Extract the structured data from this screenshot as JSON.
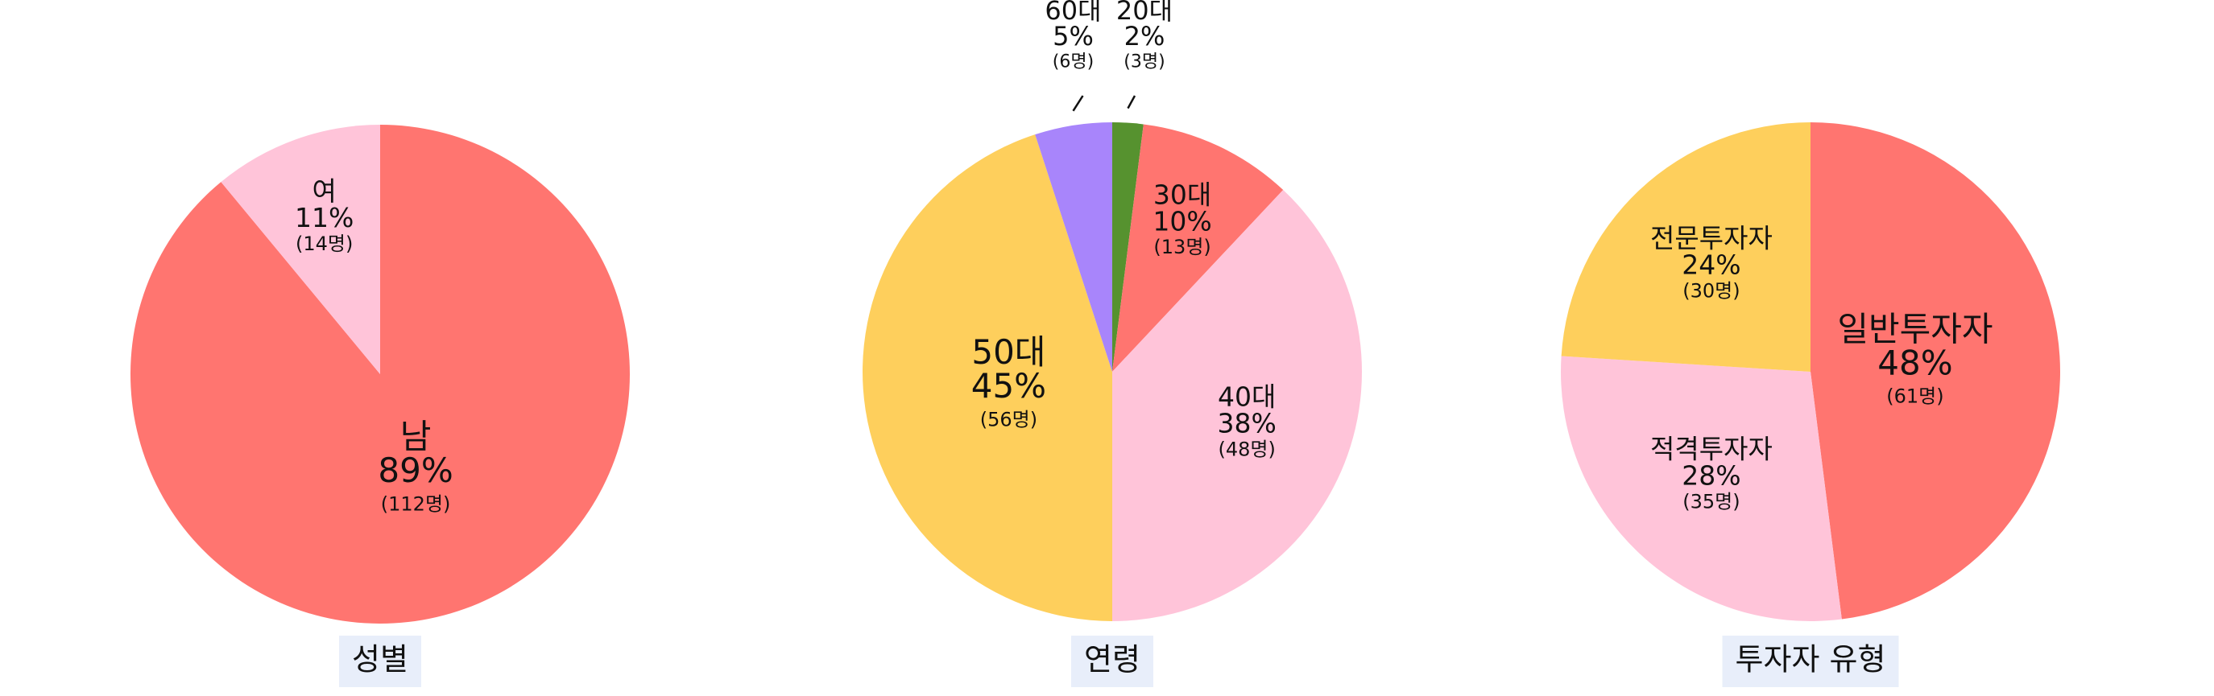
{
  "chart_data": [
    {
      "type": "pie",
      "title": "성별",
      "categories": [
        "남",
        "여"
      ],
      "values": [
        89,
        11
      ],
      "value_labels": [
        "89%",
        "11%"
      ],
      "counts": [
        112,
        14
      ],
      "count_labels": [
        "(112명)",
        "(14명)"
      ],
      "colors": [
        "#ff7570",
        "#ffc4d9"
      ]
    },
    {
      "type": "pie",
      "title": "연령",
      "categories": [
        "20대",
        "30대",
        "40대",
        "50대",
        "60대"
      ],
      "values": [
        2,
        10,
        38,
        45,
        5
      ],
      "value_labels": [
        "2%",
        "10%",
        "38%",
        "45%",
        "5%"
      ],
      "counts": [
        3,
        13,
        48,
        56,
        6
      ],
      "count_labels": [
        "(3명)",
        "(13명)",
        "(48명)",
        "(56명)",
        "(6명)"
      ],
      "colors": [
        "#56922f",
        "#ff7570",
        "#ffc4d9",
        "#fecf5c",
        "#a885fb"
      ]
    },
    {
      "type": "pie",
      "title": "투자자 유형",
      "categories": [
        "일반투자자",
        "적격투자자",
        "전문투자자"
      ],
      "values": [
        48,
        28,
        24
      ],
      "value_labels": [
        "48%",
        "28%",
        "24%"
      ],
      "counts": [
        61,
        35,
        30
      ],
      "count_labels": [
        "(61명)",
        "(35명)",
        "(30명)"
      ],
      "colors": [
        "#ff7570",
        "#ffc4d9",
        "#fecf5c"
      ]
    }
  ]
}
